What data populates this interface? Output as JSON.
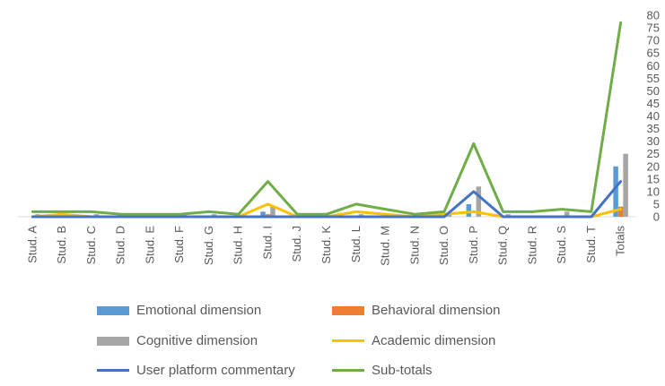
{
  "chart_data": {
    "type": "bar+line",
    "categories": [
      "Stud. A",
      "Stud. B",
      "Stud. C",
      "Stud. D",
      "Stud. E",
      "Stud. F",
      "Stud. G",
      "Stud. H",
      "Stud. I",
      "Stud. J",
      "Stud. K",
      "Stud. L",
      "Stud. M",
      "Stud. N",
      "Stud. O",
      "Stud. P",
      "Stud. Q",
      "Stud. R",
      "Stud. S",
      "Stud. T",
      "Totals"
    ],
    "ylim": [
      0,
      80
    ],
    "yticks": [
      0,
      5,
      10,
      15,
      20,
      25,
      30,
      35,
      40,
      45,
      50,
      55,
      60,
      65,
      70,
      75,
      80
    ],
    "axis_side": "right",
    "series": [
      {
        "name": "Emotional dimension",
        "kind": "bar",
        "color": "#5B9BD5",
        "values": [
          0,
          0,
          0,
          0,
          0,
          0,
          0,
          0,
          2,
          0,
          0,
          0,
          0,
          0,
          0,
          5,
          0,
          0,
          0,
          0,
          20
        ]
      },
      {
        "name": "Behavioral dimension",
        "kind": "bar",
        "color": "#ED7D31",
        "values": [
          0,
          0,
          0,
          0,
          0,
          0,
          0,
          0,
          1,
          0,
          0,
          0,
          0,
          0,
          0,
          0,
          0,
          0,
          0,
          0,
          4
        ]
      },
      {
        "name": "Cognitive dimension",
        "kind": "bar",
        "color": "#A5A5A5",
        "values": [
          1,
          1,
          1,
          0,
          1,
          1,
          1,
          1,
          4,
          1,
          0,
          1,
          1,
          0,
          1,
          12,
          1,
          0,
          2,
          1,
          25
        ]
      },
      {
        "name": "Academic dimension",
        "kind": "line",
        "color": "#FFC000",
        "values": [
          0,
          1,
          0,
          0,
          0,
          0,
          0,
          0,
          5,
          0,
          0,
          2,
          1,
          0,
          1,
          2,
          0,
          0,
          0,
          0,
          3
        ]
      },
      {
        "name": "User platform commentary",
        "kind": "line",
        "color": "#4472C4",
        "values": [
          0,
          0,
          0,
          0,
          0,
          0,
          0,
          0,
          0,
          0,
          0,
          0,
          0,
          0,
          0,
          10,
          0,
          0,
          0,
          0,
          14
        ]
      },
      {
        "name": "Sub-totals",
        "kind": "line",
        "color": "#70AD47",
        "values": [
          2,
          2,
          2,
          1,
          1,
          1,
          2,
          1,
          14,
          1,
          1,
          5,
          3,
          1,
          2,
          29,
          2,
          2,
          3,
          2,
          77
        ]
      }
    ],
    "legend_position": "bottom"
  }
}
